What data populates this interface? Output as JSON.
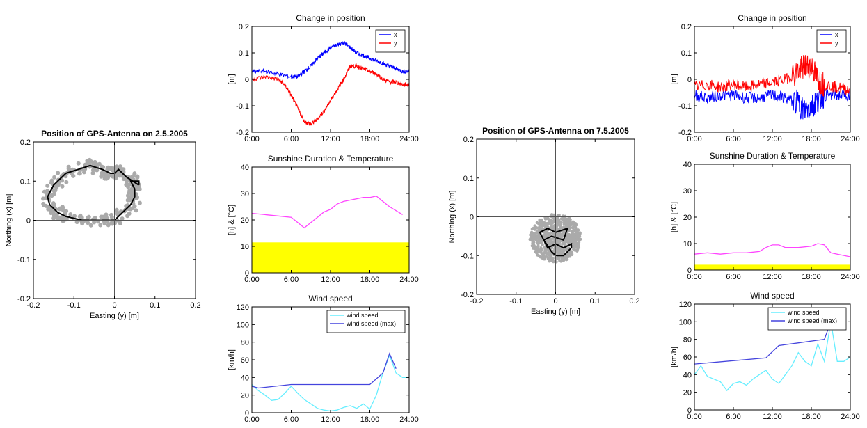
{
  "colors": {
    "x_series": "#0000ff",
    "y_series": "#ff0000",
    "scatter_cloud": "#aaaaaa",
    "path": "#000000",
    "temperature": "#ff44ff",
    "sunshine": "#ffff00",
    "wind": "#66eeff",
    "wind_max": "#4444dd"
  },
  "chart_data": [
    {
      "id": "pos1",
      "type": "scatter",
      "title": "Position of GPS-Antenna on 2.5.2005",
      "xlabel": "Easting (y) [m]",
      "ylabel": "Northing (x) [m]",
      "xlim": [
        -0.2,
        0.2
      ],
      "ylim": [
        -0.2,
        0.2
      ],
      "xticks": [
        "-0.2",
        "-0.1",
        "0",
        "0.1",
        "0.2"
      ],
      "yticks": [
        "-0.2",
        "-0.1",
        "0",
        "0.1",
        "0.2"
      ],
      "crosshair": true,
      "series": [
        {
          "role": "path",
          "color": "path",
          "x": [
            0.06,
            0.03,
            0.01,
            0,
            -0.01,
            -0.03,
            -0.06,
            -0.09,
            -0.12,
            -0.15,
            -0.165,
            -0.16,
            -0.14,
            -0.12,
            -0.08,
            -0.04,
            0.0,
            0.02,
            0.04,
            0.05,
            0.05,
            0.04,
            0.06
          ],
          "y": [
            0.09,
            0.11,
            0.13,
            0.12,
            0.12,
            0.13,
            0.14,
            0.13,
            0.12,
            0.09,
            0.06,
            0.04,
            0.02,
            0.01,
            0.0,
            0.0,
            0.0,
            0.02,
            0.04,
            0.06,
            0.08,
            0.1,
            0.1
          ]
        }
      ]
    },
    {
      "id": "pos2",
      "type": "scatter",
      "title": "Position of GPS-Antenna on 7.5.2005",
      "xlabel": "Easting (y) [m]",
      "ylabel": "Northing (x) [m]",
      "xlim": [
        -0.2,
        0.2
      ],
      "ylim": [
        -0.2,
        0.2
      ],
      "xticks": [
        "-0.2",
        "-0.1",
        "0",
        "0.1",
        "0.2"
      ],
      "yticks": [
        "-0.2",
        "-0.1",
        "0",
        "0.1",
        "0.2"
      ],
      "crosshair": true,
      "series": [
        {
          "role": "path",
          "color": "path",
          "x": [
            -0.04,
            -0.02,
            0.0,
            0.03,
            0.02,
            -0.01,
            -0.03,
            -0.02,
            0.0,
            0.02,
            0.04,
            0.04,
            0.02,
            0.0,
            -0.01,
            -0.03,
            -0.04
          ],
          "y": [
            -0.04,
            -0.03,
            -0.04,
            -0.03,
            -0.06,
            -0.05,
            -0.06,
            -0.08,
            -0.07,
            -0.08,
            -0.07,
            -0.08,
            -0.1,
            -0.1,
            -0.09,
            -0.06,
            -0.04
          ]
        }
      ]
    },
    {
      "id": "change1",
      "type": "line",
      "title": "Change in position",
      "ylabel": "[m]",
      "xlim": [
        0,
        24
      ],
      "ylim": [
        -0.2,
        0.2
      ],
      "xticks": [
        "0:00",
        "6:00",
        "12:00",
        "18:00",
        "24:00"
      ],
      "yticks": [
        "-0.2",
        "-0.1",
        "0",
        "0.1",
        "0.2"
      ],
      "legend": "top-right",
      "series": [
        {
          "name": "x",
          "color": "x_series",
          "x": [
            0,
            2,
            4,
            6,
            7,
            8,
            9,
            10,
            11,
            12,
            13,
            14,
            15,
            16,
            17,
            18,
            19,
            20,
            21,
            22,
            23,
            24
          ],
          "y": [
            0.03,
            0.03,
            0.02,
            0.01,
            0.01,
            0.03,
            0.05,
            0.08,
            0.1,
            0.12,
            0.13,
            0.14,
            0.12,
            0.1,
            0.09,
            0.08,
            0.07,
            0.06,
            0.05,
            0.04,
            0.03,
            0.03
          ]
        },
        {
          "name": "y",
          "color": "y_series",
          "x": [
            0,
            2,
            4,
            5,
            6,
            7,
            8,
            9,
            10,
            11,
            12,
            13,
            14,
            15,
            16,
            17,
            18,
            19,
            20,
            21,
            22,
            23,
            24
          ],
          "y": [
            0.0,
            0.01,
            0.0,
            -0.02,
            -0.06,
            -0.11,
            -0.16,
            -0.17,
            -0.15,
            -0.12,
            -0.08,
            -0.04,
            0.0,
            0.05,
            0.05,
            0.04,
            0.03,
            0.02,
            0.0,
            -0.01,
            -0.01,
            -0.02,
            -0.02
          ]
        }
      ]
    },
    {
      "id": "change2",
      "type": "line",
      "title": "Change in position",
      "ylabel": "[m]",
      "xlim": [
        0,
        24
      ],
      "ylim": [
        -0.2,
        0.2
      ],
      "xticks": [
        "0:00",
        "6:00",
        "12:00",
        "18:00",
        "24:00"
      ],
      "yticks": [
        "-0.2",
        "-0.1",
        "0",
        "0.1",
        "0.2"
      ],
      "legend": "top-right",
      "series": [
        {
          "name": "x",
          "color": "x_series",
          "x": [
            0,
            2,
            4,
            6,
            8,
            10,
            12,
            14,
            16,
            17,
            18,
            19,
            20,
            22,
            24
          ],
          "y": [
            -0.06,
            -0.07,
            -0.06,
            -0.06,
            -0.07,
            -0.07,
            -0.06,
            -0.07,
            -0.09,
            -0.12,
            -0.1,
            -0.08,
            -0.06,
            -0.06,
            -0.06
          ]
        },
        {
          "name": "y",
          "color": "y_series",
          "x": [
            0,
            2,
            4,
            6,
            8,
            10,
            12,
            14,
            16,
            17,
            18,
            19,
            20,
            22,
            24
          ],
          "y": [
            -0.03,
            -0.02,
            -0.03,
            -0.02,
            -0.03,
            -0.02,
            -0.01,
            0.0,
            0.03,
            0.05,
            0.05,
            0.0,
            -0.02,
            -0.03,
            -0.04
          ]
        }
      ]
    },
    {
      "id": "sun1",
      "type": "area",
      "title": "Sunshine Duration & Temperature",
      "ylabel": "[h] & [°C]",
      "xlim": [
        0,
        24
      ],
      "ylim": [
        0,
        40
      ],
      "xticks": [
        "0:00",
        "6:00",
        "12:00",
        "18:00",
        "24:00"
      ],
      "yticks": [
        "0",
        "10",
        "20",
        "30",
        "40"
      ],
      "sunshine_hours": 11.5,
      "series": [
        {
          "color": "temperature",
          "x": [
            0,
            2,
            4,
            6,
            7,
            8,
            9,
            10,
            11,
            12,
            13,
            14,
            15,
            16,
            17,
            18,
            19,
            20,
            21,
            22,
            23
          ],
          "y": [
            22.5,
            22,
            21.5,
            21,
            19,
            17,
            19,
            21,
            23,
            24,
            26,
            27,
            27.5,
            28,
            28.5,
            28.5,
            29,
            27,
            25,
            23.5,
            22
          ]
        }
      ]
    },
    {
      "id": "sun2",
      "type": "area",
      "title": "Sunshine Duration & Temperature",
      "ylabel": "[h] & [°C]",
      "xlim": [
        0,
        24
      ],
      "ylim": [
        0,
        40
      ],
      "xticks": [
        "0:00",
        "6:00",
        "12:00",
        "18:00",
        "24:00"
      ],
      "yticks": [
        "0",
        "10",
        "20",
        "30",
        "40"
      ],
      "sunshine_hours": 2,
      "series": [
        {
          "color": "temperature",
          "x": [
            0,
            2,
            4,
            6,
            8,
            10,
            11,
            12,
            13,
            14,
            16,
            18,
            19,
            20,
            21,
            22,
            24
          ],
          "y": [
            6,
            6.5,
            6,
            6.5,
            6.5,
            7,
            8.5,
            9.5,
            9.5,
            8.5,
            8.5,
            9,
            10,
            9.5,
            6.5,
            6,
            5
          ]
        }
      ]
    },
    {
      "id": "wind1",
      "type": "line",
      "title": "Wind speed",
      "ylabel": "[km/h]",
      "xlim": [
        0,
        24
      ],
      "ylim": [
        0,
        120
      ],
      "xticks": [
        "0:00",
        "6:00",
        "12:00",
        "18:00",
        "24:00"
      ],
      "yticks": [
        "0",
        "20",
        "40",
        "60",
        "80",
        "100",
        "120"
      ],
      "legend": "top-right",
      "series": [
        {
          "name": "wind speed",
          "color": "wind",
          "x": [
            0,
            1,
            2,
            3,
            4,
            5,
            6,
            7,
            8,
            9,
            10,
            11,
            12,
            13,
            14,
            15,
            16,
            17,
            18,
            19,
            20,
            21,
            22,
            23,
            24
          ],
          "y": [
            32,
            25,
            20,
            14,
            15,
            22,
            30,
            22,
            15,
            10,
            5,
            3,
            2,
            3,
            6,
            8,
            5,
            10,
            4,
            20,
            45,
            65,
            45,
            40,
            40
          ]
        },
        {
          "name": "wind speed (max)",
          "color": "wind_max",
          "x": [
            0,
            1,
            6,
            18,
            20,
            21,
            22
          ],
          "y": [
            30,
            28,
            32,
            32,
            45,
            67,
            50
          ]
        }
      ]
    },
    {
      "id": "wind2",
      "type": "line",
      "title": "Wind speed",
      "ylabel": "[km/h]",
      "xlim": [
        0,
        24
      ],
      "ylim": [
        0,
        120
      ],
      "xticks": [
        "0:00",
        "6:00",
        "12:00",
        "18:00",
        "24:00"
      ],
      "yticks": [
        "0",
        "20",
        "40",
        "60",
        "80",
        "100",
        "120"
      ],
      "legend": "top-right",
      "series": [
        {
          "name": "wind speed",
          "color": "wind",
          "x": [
            0,
            1,
            2,
            3,
            4,
            5,
            6,
            7,
            8,
            9,
            10,
            11,
            12,
            13,
            14,
            15,
            16,
            17,
            18,
            19,
            20,
            21,
            22,
            23,
            24
          ],
          "y": [
            40,
            50,
            38,
            35,
            32,
            22,
            30,
            32,
            28,
            35,
            40,
            45,
            35,
            30,
            40,
            50,
            65,
            55,
            50,
            75,
            55,
            100,
            55,
            55,
            60
          ]
        },
        {
          "name": "wind speed (max)",
          "color": "wind_max",
          "x": [
            0,
            11,
            13,
            19,
            20,
            21
          ],
          "y": [
            52,
            59,
            73,
            79,
            80,
            100
          ]
        }
      ]
    }
  ]
}
